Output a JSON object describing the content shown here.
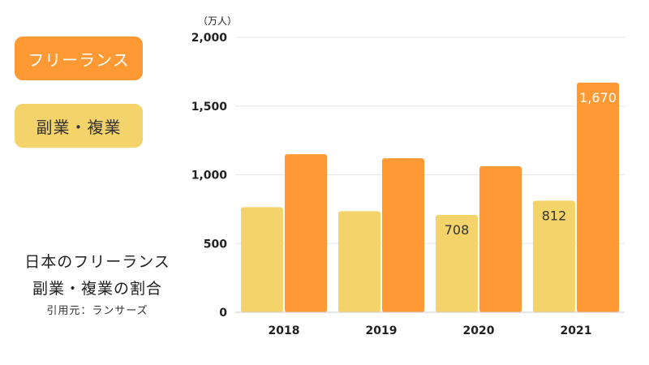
{
  "legend": {
    "freelance": "フリーランス",
    "side_job": "副業・複業"
  },
  "caption": {
    "line1": "日本のフリーランス",
    "line2": "副業・複業の割合",
    "source": "引用元：ランサーズ"
  },
  "colors": {
    "freelance": "#ff9933",
    "side_job": "#f5d36b",
    "grid": "#e6e6e6"
  },
  "chart_data": {
    "type": "bar",
    "categories": [
      "2018",
      "2019",
      "2020",
      "2021"
    ],
    "series": [
      {
        "name": "副業・複業",
        "values": [
          765,
          735,
          708,
          812
        ],
        "labels": [
          "",
          "",
          "708",
          "812"
        ]
      },
      {
        "name": "フリーランス",
        "values": [
          1150,
          1120,
          1062,
          1670
        ],
        "labels": [
          "",
          "",
          "",
          "1,670"
        ]
      }
    ],
    "ylim": [
      0,
      2000
    ],
    "yticks": [
      0,
      500,
      1000,
      1500,
      2000
    ],
    "ytick_labels": [
      "0",
      "500",
      "1,000",
      "1,500",
      "2,000"
    ],
    "unit": "（万人）",
    "grid": true
  }
}
